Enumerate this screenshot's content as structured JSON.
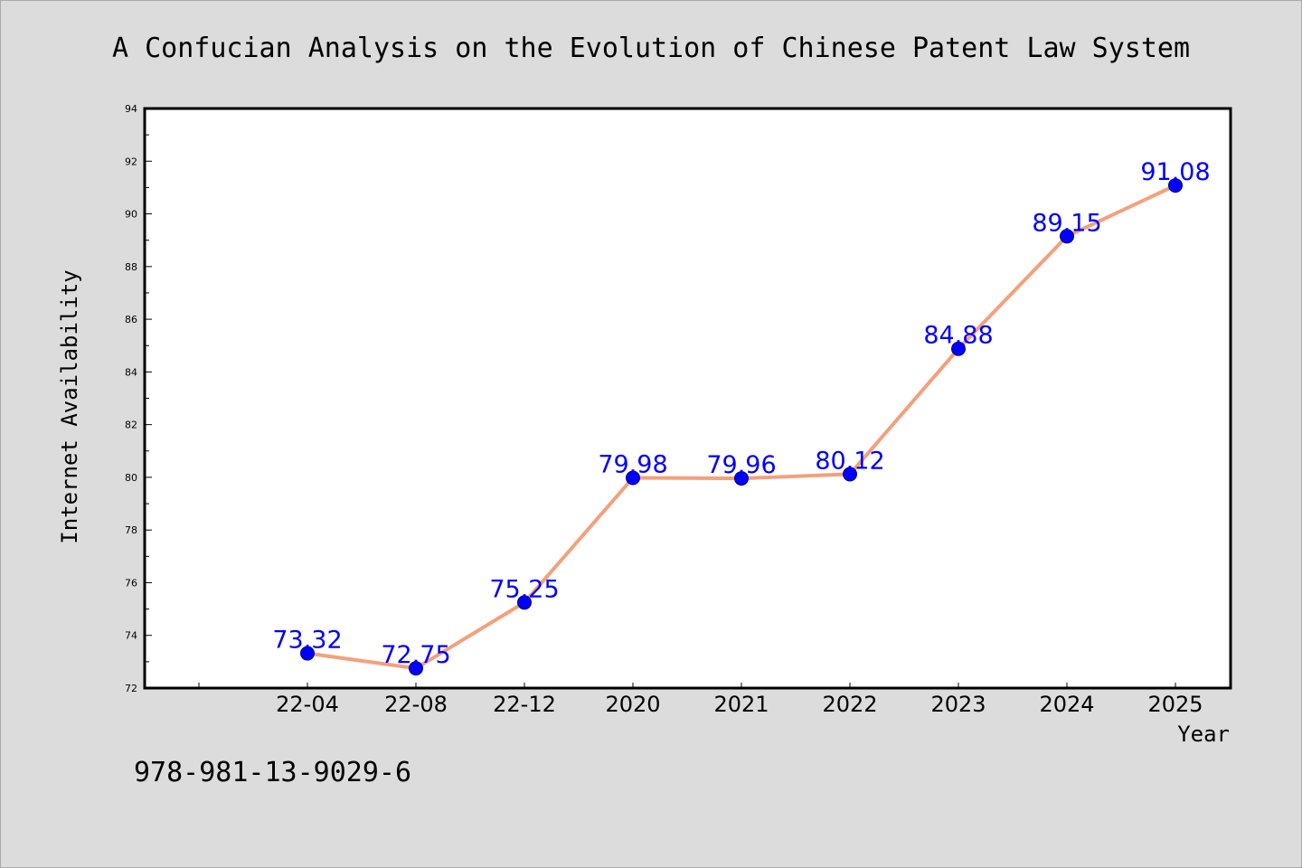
{
  "chart_data": {
    "type": "line",
    "title": "A Confucian Analysis on the Evolution of Chinese Patent Law System",
    "xlabel": "Year",
    "ylabel": "Internet Availability",
    "categories": [
      "22-04",
      "22-08",
      "22-12",
      "2020",
      "2021",
      "2022",
      "2023",
      "2024",
      "2025"
    ],
    "series": [
      {
        "values": [
          73.32,
          72.75,
          75.25,
          79.98,
          79.96,
          80.12,
          84.88,
          89.15,
          91.08
        ]
      }
    ],
    "data_labels": [
      "73.32",
      "72.75",
      "75.25",
      "79.98",
      "79.96",
      "80.12",
      "84.88",
      "89.15",
      "91.08"
    ],
    "ylim": [
      72,
      94
    ],
    "yticks": [
      "72",
      "74",
      "76",
      "78",
      "80",
      "82",
      "84",
      "86",
      "88",
      "90",
      "92",
      "94"
    ],
    "grid": false,
    "annotation": "978-981-13-9029-6",
    "colors": {
      "background": "#dcdcdc",
      "plot_area": "#ffffff",
      "line": "#f4a07c",
      "marker": "#0000ff",
      "data_label": "#0000ff"
    }
  }
}
